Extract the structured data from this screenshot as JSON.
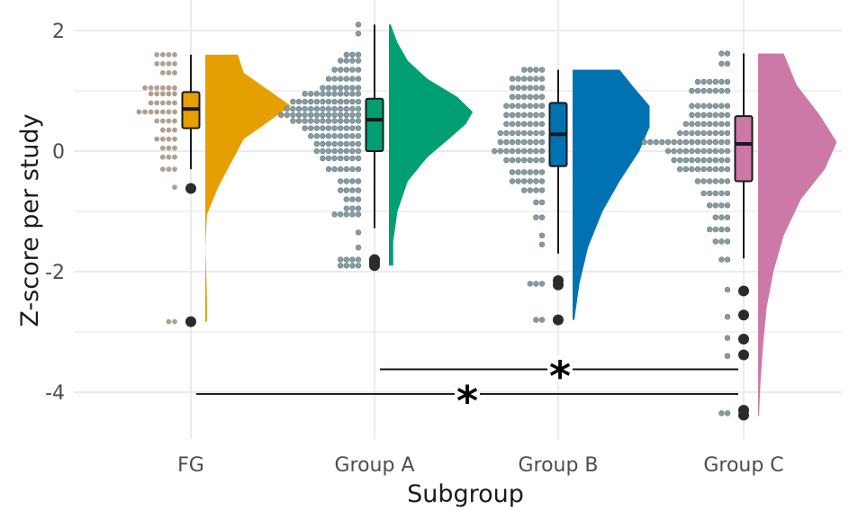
{
  "chart_data": {
    "type": "raincloud",
    "xlabel": "Subgroup",
    "ylabel": "Z-score per study",
    "ylim": [
      -4.5,
      2.4
    ],
    "yticks": [
      2,
      0,
      -2,
      -4
    ],
    "grid": true,
    "categories": [
      "FG",
      "Group A",
      "Group B",
      "Group C"
    ],
    "colors": {
      "FG": "#E69F00",
      "Group A": "#009E73",
      "Group B": "#0072B2",
      "Group C": "#CC79A7",
      "dots_FG": "#b0a090",
      "dots_other": "#8c9aa0"
    },
    "groups": [
      {
        "name": "FG",
        "box": {
          "q1": 0.38,
          "median": 0.7,
          "q3": 0.98,
          "whisker_low": -0.3,
          "whisker_high": 1.6
        },
        "outliers": [
          -0.62,
          -2.83
        ],
        "dots": [
          {
            "y": 1.6,
            "n": 4
          },
          {
            "y": 1.45,
            "n": 4
          },
          {
            "y": 1.3,
            "n": 3
          },
          {
            "y": 1.05,
            "n": 6
          },
          {
            "y": 0.95,
            "n": 5
          },
          {
            "y": 0.8,
            "n": 5
          },
          {
            "y": 0.65,
            "n": 7
          },
          {
            "y": 0.5,
            "n": 4
          },
          {
            "y": 0.35,
            "n": 3
          },
          {
            "y": 0.2,
            "n": 4
          },
          {
            "y": 0.05,
            "n": 3
          },
          {
            "y": -0.1,
            "n": 3
          },
          {
            "y": -0.3,
            "n": 3
          },
          {
            "y": -0.6,
            "n": 1
          },
          {
            "y": -2.83,
            "n": 2
          }
        ],
        "density": [
          {
            "y": -2.83,
            "w": 0.02
          },
          {
            "y": -2.5,
            "w": 0.02
          },
          {
            "y": -2.2,
            "w": 0.015
          },
          {
            "y": -1.6,
            "w": 0.0
          },
          {
            "y": -1.05,
            "w": 0.02
          },
          {
            "y": -0.6,
            "w": 0.15
          },
          {
            "y": -0.2,
            "w": 0.3
          },
          {
            "y": 0.2,
            "w": 0.45
          },
          {
            "y": 0.5,
            "w": 0.75
          },
          {
            "y": 0.75,
            "w": 1.0
          },
          {
            "y": 1.0,
            "w": 0.75
          },
          {
            "y": 1.3,
            "w": 0.45
          },
          {
            "y": 1.6,
            "w": 0.38
          }
        ]
      },
      {
        "name": "Group A",
        "box": {
          "q1": 0.0,
          "median": 0.52,
          "q3": 0.87,
          "whisker_low": -1.28,
          "whisker_high": 2.1
        },
        "outliers": [
          -1.8,
          -1.85,
          -1.9
        ],
        "dots": [
          {
            "y": 2.1,
            "n": 1
          },
          {
            "y": 1.95,
            "n": 1
          },
          {
            "y": 1.6,
            "n": 3
          },
          {
            "y": 1.5,
            "n": 4
          },
          {
            "y": 1.35,
            "n": 5
          },
          {
            "y": 1.2,
            "n": 6
          },
          {
            "y": 1.05,
            "n": 7
          },
          {
            "y": 0.95,
            "n": 10
          },
          {
            "y": 0.82,
            "n": 12
          },
          {
            "y": 0.7,
            "n": 13
          },
          {
            "y": 0.6,
            "n": 14
          },
          {
            "y": 0.5,
            "n": 12
          },
          {
            "y": 0.38,
            "n": 10
          },
          {
            "y": 0.25,
            "n": 9
          },
          {
            "y": 0.12,
            "n": 8
          },
          {
            "y": 0.0,
            "n": 8
          },
          {
            "y": -0.12,
            "n": 7
          },
          {
            "y": -0.3,
            "n": 6
          },
          {
            "y": -0.5,
            "n": 4
          },
          {
            "y": -0.65,
            "n": 4
          },
          {
            "y": -0.8,
            "n": 3
          },
          {
            "y": -0.95,
            "n": 3
          },
          {
            "y": -1.05,
            "n": 5
          },
          {
            "y": -1.35,
            "n": 1
          },
          {
            "y": -1.6,
            "n": 1
          },
          {
            "y": -1.8,
            "n": 4
          },
          {
            "y": -1.9,
            "n": 4
          }
        ],
        "density": [
          {
            "y": -1.9,
            "w": 0.05
          },
          {
            "y": -1.5,
            "w": 0.05
          },
          {
            "y": -1.0,
            "w": 0.1
          },
          {
            "y": -0.5,
            "w": 0.22
          },
          {
            "y": -0.1,
            "w": 0.45
          },
          {
            "y": 0.2,
            "w": 0.7
          },
          {
            "y": 0.45,
            "w": 0.9
          },
          {
            "y": 0.65,
            "w": 0.98
          },
          {
            "y": 0.9,
            "w": 0.8
          },
          {
            "y": 1.2,
            "w": 0.45
          },
          {
            "y": 1.5,
            "w": 0.22
          },
          {
            "y": 1.8,
            "w": 0.1
          },
          {
            "y": 2.1,
            "w": 0.02
          }
        ]
      },
      {
        "name": "Group B",
        "box": {
          "q1": -0.25,
          "median": 0.28,
          "q3": 0.8,
          "whisker_low": -1.7,
          "whisker_high": 1.35
        },
        "outliers": [
          -2.15,
          -2.22,
          -2.8
        ],
        "dots": [
          {
            "y": 1.35,
            "n": 4
          },
          {
            "y": 1.2,
            "n": 6
          },
          {
            "y": 1.05,
            "n": 6
          },
          {
            "y": 0.9,
            "n": 6
          },
          {
            "y": 0.75,
            "n": 7
          },
          {
            "y": 0.6,
            "n": 7
          },
          {
            "y": 0.45,
            "n": 7
          },
          {
            "y": 0.3,
            "n": 8
          },
          {
            "y": 0.15,
            "n": 8
          },
          {
            "y": 0.0,
            "n": 9
          },
          {
            "y": -0.15,
            "n": 7
          },
          {
            "y": -0.35,
            "n": 6
          },
          {
            "y": -0.5,
            "n": 6
          },
          {
            "y": -0.65,
            "n": 4
          },
          {
            "y": -0.85,
            "n": 2
          },
          {
            "y": -1.1,
            "n": 2
          },
          {
            "y": -1.4,
            "n": 1
          },
          {
            "y": -1.55,
            "n": 1
          },
          {
            "y": -2.2,
            "n": 3
          },
          {
            "y": -2.8,
            "n": 2
          }
        ],
        "density": [
          {
            "y": -2.8,
            "w": 0.02
          },
          {
            "y": -2.2,
            "w": 0.08
          },
          {
            "y": -1.6,
            "w": 0.18
          },
          {
            "y": -1.0,
            "w": 0.35
          },
          {
            "y": -0.5,
            "w": 0.55
          },
          {
            "y": 0.0,
            "w": 0.78
          },
          {
            "y": 0.4,
            "w": 0.9
          },
          {
            "y": 0.75,
            "w": 0.9
          },
          {
            "y": 1.05,
            "w": 0.72
          },
          {
            "y": 1.35,
            "w": 0.55
          }
        ]
      },
      {
        "name": "Group C",
        "box": {
          "q1": -0.5,
          "median": 0.12,
          "q3": 0.58,
          "whisker_low": -1.78,
          "whisker_high": 1.62
        },
        "outliers": [
          -2.32,
          -2.72,
          -3.12,
          -3.38,
          -4.3,
          -4.38
        ],
        "dots": [
          {
            "y": 1.62,
            "n": 2
          },
          {
            "y": 1.45,
            "n": 2
          },
          {
            "y": 1.15,
            "n": 6
          },
          {
            "y": 1.0,
            "n": 7
          },
          {
            "y": 0.75,
            "n": 7
          },
          {
            "y": 0.6,
            "n": 7
          },
          {
            "y": 0.45,
            "n": 8
          },
          {
            "y": 0.3,
            "n": 9
          },
          {
            "y": 0.15,
            "n": 15
          },
          {
            "y": 0.0,
            "n": 11
          },
          {
            "y": -0.15,
            "n": 10
          },
          {
            "y": -0.3,
            "n": 9
          },
          {
            "y": -0.5,
            "n": 6
          },
          {
            "y": -0.7,
            "n": 5
          },
          {
            "y": -0.9,
            "n": 4
          },
          {
            "y": -1.1,
            "n": 3
          },
          {
            "y": -1.3,
            "n": 4
          },
          {
            "y": -1.5,
            "n": 3
          },
          {
            "y": -1.8,
            "n": 2
          },
          {
            "y": -2.3,
            "n": 1
          },
          {
            "y": -2.75,
            "n": 1
          },
          {
            "y": -3.1,
            "n": 1
          },
          {
            "y": -3.4,
            "n": 1
          },
          {
            "y": -4.35,
            "n": 2
          }
        ],
        "density": [
          {
            "y": -4.4,
            "w": 0.01
          },
          {
            "y": -3.8,
            "w": 0.03
          },
          {
            "y": -3.2,
            "w": 0.06
          },
          {
            "y": -2.6,
            "w": 0.1
          },
          {
            "y": -2.0,
            "w": 0.18
          },
          {
            "y": -1.4,
            "w": 0.3
          },
          {
            "y": -0.8,
            "w": 0.5
          },
          {
            "y": -0.3,
            "w": 0.78
          },
          {
            "y": 0.15,
            "w": 0.92
          },
          {
            "y": 0.6,
            "w": 0.72
          },
          {
            "y": 1.1,
            "w": 0.45
          },
          {
            "y": 1.62,
            "w": 0.3
          }
        ]
      }
    ],
    "significance": [
      {
        "from": "Group A",
        "to": "Group C",
        "y": -3.62,
        "label": "*"
      },
      {
        "from": "FG",
        "to": "Group C",
        "y": -4.03,
        "label": "*"
      }
    ]
  }
}
